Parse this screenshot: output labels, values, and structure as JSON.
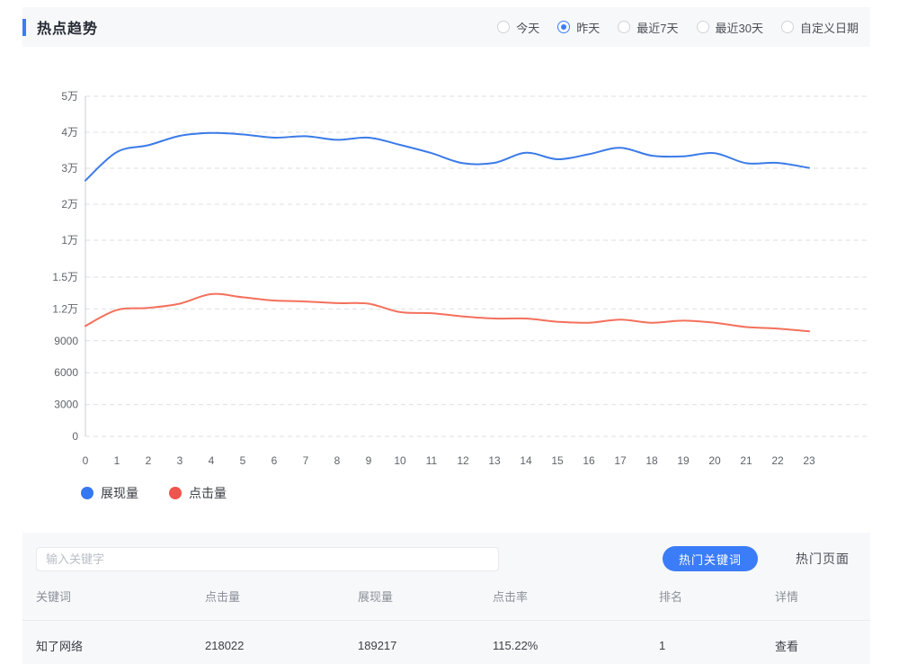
{
  "header": {
    "title": "热点趋势",
    "date_ranges": [
      {
        "label": "今天",
        "selected": false
      },
      {
        "label": "昨天",
        "selected": true
      },
      {
        "label": "最近7天",
        "selected": false
      },
      {
        "label": "最近30天",
        "selected": false
      },
      {
        "label": "自定义日期",
        "selected": false
      }
    ]
  },
  "chart_data": {
    "type": "line",
    "x": [
      0,
      1,
      2,
      3,
      4,
      5,
      6,
      7,
      8,
      9,
      10,
      11,
      12,
      13,
      14,
      15,
      16,
      17,
      18,
      19,
      20,
      21,
      22,
      23
    ],
    "series": [
      {
        "name": "展现量",
        "axis": "upper",
        "color": "#3b7be8",
        "values": [
          26600,
          34500,
          36400,
          39000,
          39800,
          39400,
          38500,
          38900,
          37900,
          38500,
          36500,
          34200,
          31400,
          31500,
          34300,
          32500,
          33900,
          35700,
          33500,
          33300,
          34200,
          31400,
          31500,
          30100
        ]
      },
      {
        "name": "点击量",
        "axis": "lower",
        "color": "#f4705c",
        "values": [
          10400,
          11900,
          12100,
          12500,
          13400,
          13100,
          12800,
          12700,
          12550,
          12500,
          11700,
          11600,
          11300,
          11100,
          11100,
          10800,
          10700,
          11000,
          10700,
          10900,
          10700,
          10300,
          10150,
          9900
        ]
      }
    ],
    "upper_axis": {
      "range": [
        10000,
        50000
      ],
      "ticks": [
        {
          "label": "5万",
          "value": 50000
        },
        {
          "label": "4万",
          "value": 40000
        },
        {
          "label": "3万",
          "value": 30000
        },
        {
          "label": "2万",
          "value": 20000
        },
        {
          "label": "1万",
          "value": 10000
        }
      ]
    },
    "lower_axis": {
      "range": [
        0,
        15000
      ],
      "ticks": [
        {
          "label": "1.5万",
          "value": 15000
        },
        {
          "label": "1.2万",
          "value": 12000
        },
        {
          "label": "9000",
          "value": 9000
        },
        {
          "label": "6000",
          "value": 6000
        },
        {
          "label": "3000",
          "value": 3000
        },
        {
          "label": "0",
          "value": 0
        }
      ]
    },
    "grid": "dashed horizontal gridlines",
    "legend_position": "bottom-left",
    "legend": [
      {
        "label": "展现量",
        "color": "#3577f2"
      },
      {
        "label": "点击量",
        "color": "#f0544e"
      }
    ]
  },
  "search": {
    "placeholder": "输入关键字"
  },
  "tabs": {
    "hot_keywords": "热门关键词",
    "hot_pages": "热门页面"
  },
  "table": {
    "columns": [
      "关键词",
      "点击量",
      "展现量",
      "点击率",
      "排名",
      "详情"
    ],
    "rows": [
      [
        "知了网络",
        "218022",
        "189217",
        "115.22%",
        "1",
        "查看"
      ]
    ],
    "link_columns": [
      0,
      5
    ]
  },
  "colors": {
    "accent": "#3b7cf8",
    "panel_bg": "#f7f8fa",
    "line_blue": "#3b7be8",
    "line_red": "#f4705c",
    "axis_text": "#5f646b",
    "grid_line": "#dcdfe3"
  }
}
